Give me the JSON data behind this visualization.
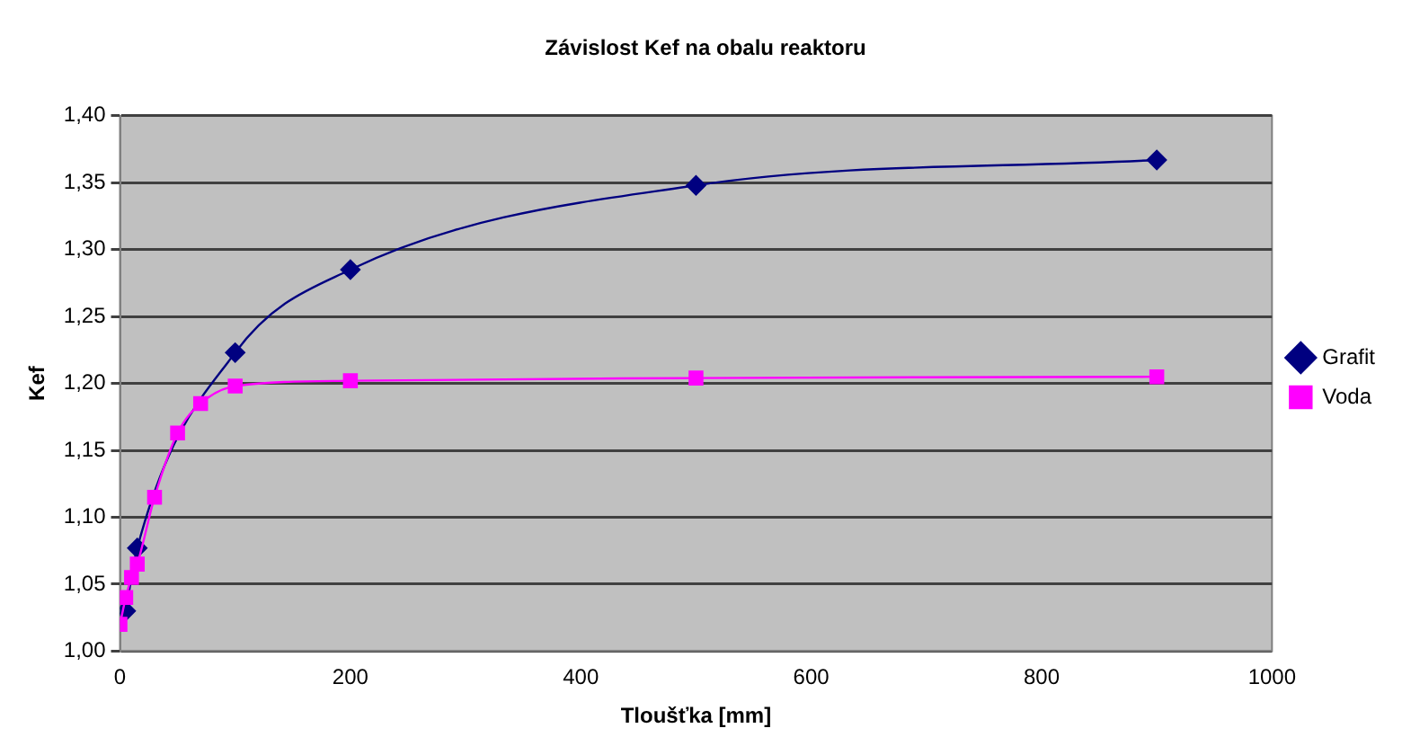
{
  "chart_data": {
    "type": "line",
    "title": "Závislost Kef na obalu reaktoru",
    "xlabel": "Tloušťka [mm]",
    "ylabel": "Kef",
    "xlim": [
      0,
      1000
    ],
    "xticks": [
      0,
      200,
      400,
      600,
      800,
      1000
    ],
    "ylim": [
      1.0,
      1.4
    ],
    "yticks": [
      {
        "value": 1.0,
        "label": "1,00"
      },
      {
        "value": 1.05,
        "label": "1,05"
      },
      {
        "value": 1.1,
        "label": "1,10"
      },
      {
        "value": 1.15,
        "label": "1,15"
      },
      {
        "value": 1.2,
        "label": "1,20"
      },
      {
        "value": 1.25,
        "label": "1,25"
      },
      {
        "value": 1.3,
        "label": "1,30"
      },
      {
        "value": 1.35,
        "label": "1,35"
      },
      {
        "value": 1.4,
        "label": "1,40"
      }
    ],
    "grid": "y",
    "legend": "right",
    "series": [
      {
        "name": "Grafit",
        "color": "#000080",
        "marker": "diamond",
        "x": [
          5,
          15,
          100,
          200,
          500,
          900
        ],
        "values": [
          1.03,
          1.077,
          1.223,
          1.285,
          1.348,
          1.367
        ]
      },
      {
        "name": "Voda",
        "color": "#ff00ff",
        "marker": "square",
        "x": [
          0,
          5,
          10,
          15,
          30,
          50,
          70,
          100,
          200,
          500,
          900
        ],
        "values": [
          1.02,
          1.04,
          1.055,
          1.065,
          1.115,
          1.163,
          1.185,
          1.198,
          1.202,
          1.204,
          1.205
        ]
      }
    ]
  }
}
